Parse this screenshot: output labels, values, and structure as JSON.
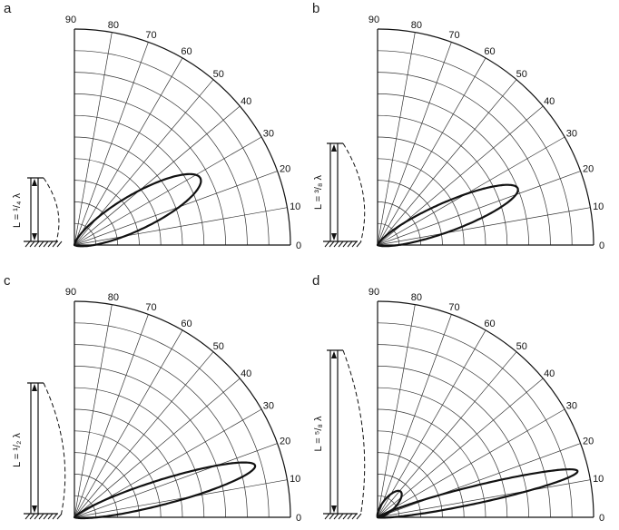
{
  "figure": {
    "angle_ticks": [
      "0",
      "10",
      "20",
      "30",
      "40",
      "50",
      "60",
      "70",
      "80",
      "90"
    ]
  },
  "panels": [
    {
      "letter": "a",
      "antenna_label": "L = ¹/₄ λ"
    },
    {
      "letter": "b",
      "antenna_label": "L = ³/₈ λ"
    },
    {
      "letter": "c",
      "antenna_label": "L = ¹/₂ λ"
    },
    {
      "letter": "d",
      "antenna_label": "L = ⁵/₈ λ"
    }
  ]
}
